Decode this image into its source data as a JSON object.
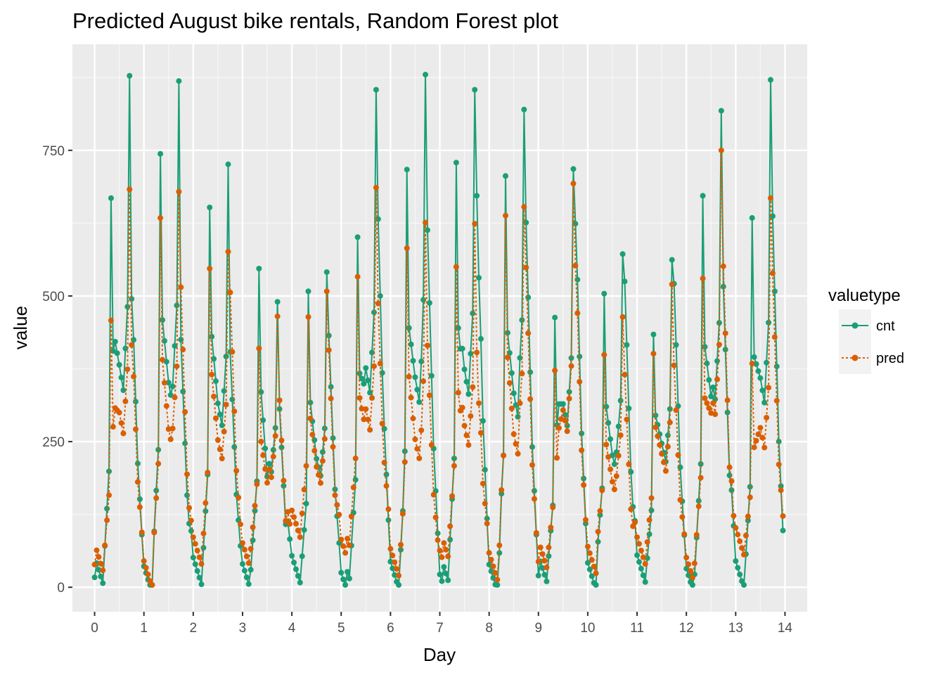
{
  "chart_data": {
    "type": "line",
    "title": "Predicted August bike rentals, Random Forest plot",
    "xlabel": "Day",
    "ylabel": "value",
    "xlim": [
      -0.45,
      14.45
    ],
    "ylim": [
      -42,
      932
    ],
    "x_ticks": [
      "0",
      "1",
      "2",
      "3",
      "4",
      "5",
      "6",
      "7",
      "8",
      "9",
      "10",
      "11",
      "12",
      "13",
      "14"
    ],
    "y_ticks": [
      "0",
      "250",
      "500",
      "750"
    ],
    "grid": true,
    "legend": {
      "title": "valuetype",
      "position": "right"
    },
    "series": [
      {
        "name": "cnt",
        "color": "#1b9e77",
        "linestyle": "solid",
        "daily_peaks": [
          [
            680,
            890,
            511
          ],
          [
            740,
            865,
            425
          ],
          [
            668,
            742,
            388
          ],
          [
            547,
            490,
            310
          ],
          [
            492,
            525,
            420
          ],
          [
            605,
            858,
            640
          ],
          [
            705,
            868,
            605
          ],
          [
            737,
            862,
            684
          ],
          [
            698,
            812,
            622
          ],
          [
            475,
            730,
            640
          ],
          [
            500,
            568,
            525
          ],
          [
            450,
            578,
            505
          ],
          [
            672,
            818,
            520
          ],
          [
            618,
            855,
            625
          ]
        ],
        "daily_mins": [
          3,
          6,
          5,
          14,
          12,
          3,
          6,
          4,
          5,
          6,
          12,
          9,
          6,
          3
        ]
      },
      {
        "name": "pred",
        "color": "#d95f02",
        "linestyle": "dotted",
        "daily_peaks": [
          [
            470,
            695,
            432
          ],
          [
            630,
            675,
            515
          ],
          [
            563,
            592,
            490
          ],
          [
            410,
            465,
            325
          ],
          [
            448,
            492,
            395
          ],
          [
            537,
            690,
            495
          ],
          [
            570,
            614,
            407
          ],
          [
            558,
            632,
            415
          ],
          [
            630,
            645,
            545
          ],
          [
            384,
            705,
            568
          ],
          [
            395,
            460,
            365
          ],
          [
            417,
            536,
            365
          ],
          [
            530,
            750,
            555
          ],
          [
            368,
            652,
            527
          ]
        ],
        "daily_mins": [
          25,
          15,
          40,
          50,
          90,
          60,
          28,
          45,
          25,
          30,
          40,
          40,
          25,
          60
        ]
      }
    ]
  }
}
